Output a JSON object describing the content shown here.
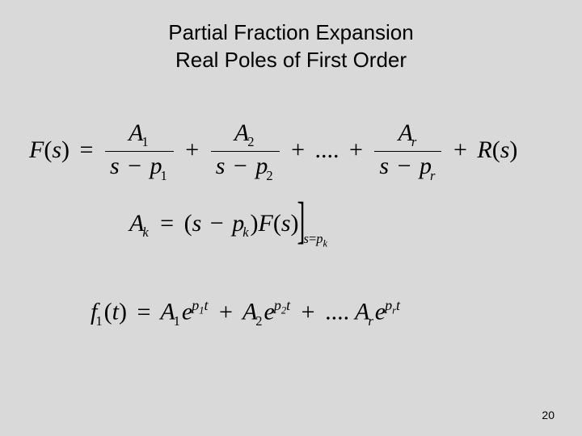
{
  "title": {
    "line1": "Partial Fraction Expansion",
    "line2": "Real Poles of First Order"
  },
  "formula1": {
    "lhs": "F",
    "lhs_arg": "s",
    "terms": [
      {
        "num_var": "A",
        "num_sub": "1",
        "den_var1": "s",
        "den_var2": "p",
        "den_sub": "1"
      },
      {
        "num_var": "A",
        "num_sub": "2",
        "den_var1": "s",
        "den_var2": "p",
        "den_sub": "2"
      },
      {
        "num_var": "A",
        "num_sub": "r",
        "den_var1": "s",
        "den_var2": "p",
        "den_sub": "r"
      }
    ],
    "ellipsis": "....",
    "tail_var": "R",
    "tail_arg": "s"
  },
  "formula2": {
    "lhs_var": "A",
    "lhs_sub": "k",
    "paren_var1": "s",
    "paren_var2": "p",
    "paren_sub": "k",
    "rhs_var": "F",
    "rhs_arg": "s",
    "eval_lhs": "s",
    "eval_rhs_var": "p",
    "eval_rhs_sub": "k"
  },
  "formula3": {
    "lhs_var": "f",
    "lhs_sub": "1",
    "lhs_arg": "t",
    "terms": [
      {
        "coef_var": "A",
        "coef_sub": "1",
        "exp_base": "e",
        "exp_var": "p",
        "exp_sub": "1",
        "exp_arg": "t"
      },
      {
        "coef_var": "A",
        "coef_sub": "2",
        "exp_base": "e",
        "exp_var": "p",
        "exp_sub": "2",
        "exp_arg": "t"
      },
      {
        "coef_var": "A",
        "coef_sub": "r",
        "exp_base": "e",
        "exp_var": "p",
        "exp_sub": "r",
        "exp_arg": "t"
      }
    ],
    "ellipsis": "...."
  },
  "page_number": "20",
  "colors": {
    "background": "#d9d9d9",
    "text": "#000000"
  }
}
